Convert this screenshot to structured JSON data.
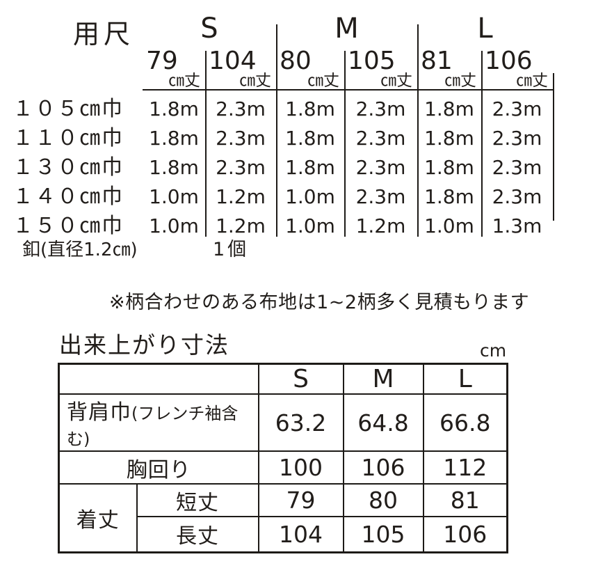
{
  "colors": {
    "text": "#211d1a",
    "line": "#1d1a17",
    "background": "#ffffff"
  },
  "yardage_table": {
    "title": "用尺",
    "size_headers": [
      "S",
      "M",
      "L"
    ],
    "length_headers": [
      {
        "value": "79",
        "unit": "㎝丈"
      },
      {
        "value": "104",
        "unit": "㎝丈"
      },
      {
        "value": "80",
        "unit": "㎝丈"
      },
      {
        "value": "105",
        "unit": "㎝丈"
      },
      {
        "value": "81",
        "unit": "㎝丈"
      },
      {
        "value": "106",
        "unit": "㎝丈"
      }
    ],
    "rows": [
      {
        "label": "１０５㎝巾",
        "values": [
          "1.8m",
          "2.3m",
          "1.8m",
          "2.3m",
          "1.8m",
          "2.3m"
        ]
      },
      {
        "label": "１１０㎝巾",
        "values": [
          "1.8m",
          "2.3m",
          "1.8m",
          "2.3m",
          "1.8m",
          "2.3m"
        ]
      },
      {
        "label": "１３０㎝巾",
        "values": [
          "1.8m",
          "2.3m",
          "1.8m",
          "2.3m",
          "1.8m",
          "2.3m"
        ]
      },
      {
        "label": "１４０㎝巾",
        "values": [
          "1.0m",
          "1.2m",
          "1.0m",
          "2.3m",
          "1.8m",
          "2.3m"
        ]
      },
      {
        "label": "１５０㎝巾",
        "values": [
          "1.0m",
          "1.2m",
          "1.0m",
          "1.2m",
          "1.0m",
          "1.3m"
        ]
      }
    ],
    "notions_row": {
      "label": "釦(直径1.2㎝)",
      "value": "1個"
    }
  },
  "pattern_note": "※柄合わせのある布地は1~2柄多く見積もります",
  "finished_table": {
    "title": "出来上がり寸法",
    "unit": "cm",
    "size_headers": [
      "S",
      "M",
      "L"
    ],
    "rows": [
      {
        "label": "背肩巾",
        "label_note": "(フレンチ袖含む)",
        "values": [
          "63.2",
          "64.8",
          "66.8"
        ]
      },
      {
        "label": "胸回り",
        "values": [
          "100",
          "106",
          "112"
        ]
      },
      {
        "group_label": "着丈",
        "label": "短丈",
        "values": [
          "79",
          "80",
          "81"
        ]
      },
      {
        "label": "長丈",
        "values": [
          "104",
          "105",
          "106"
        ]
      }
    ]
  }
}
